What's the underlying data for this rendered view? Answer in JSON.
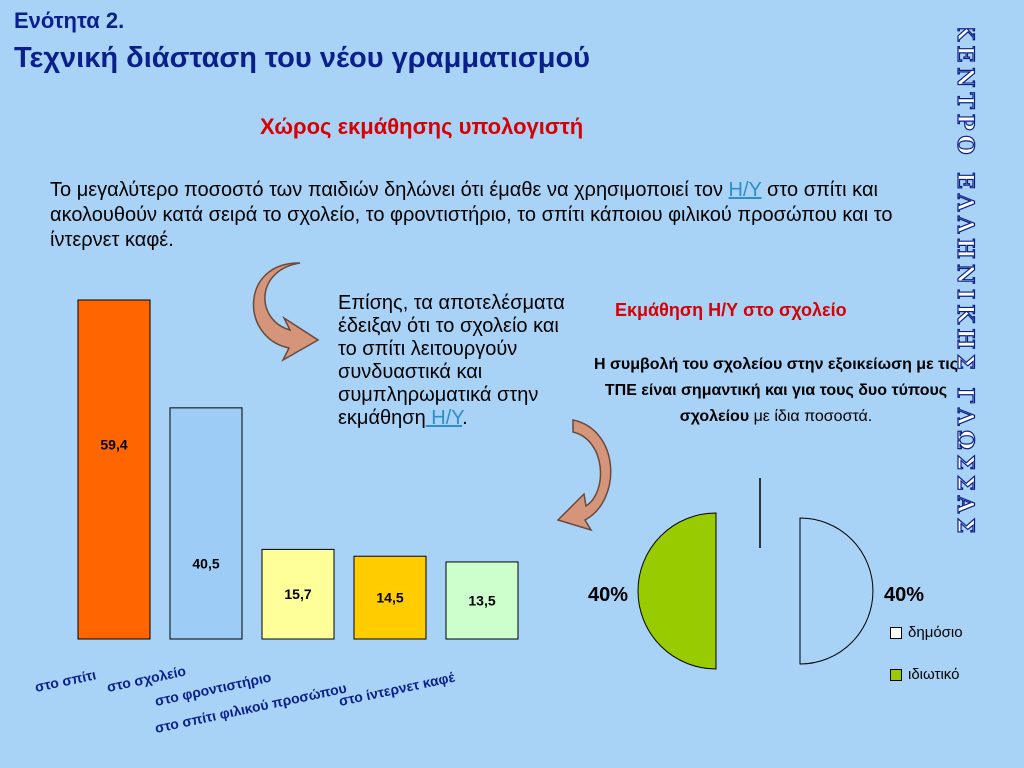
{
  "header": {
    "unit": "Ενότητα 2.",
    "title": "Τεχνική διάσταση του νέου γραμματισμού",
    "subtitle": "Χώρος εκμάθησης υπολογιστή"
  },
  "intro": {
    "part1": "Το μεγαλύτερο ποσοστό των παιδιών δηλώνει ότι έμαθε να χρησιμοποιεί τον ",
    "link": "Η/Υ",
    "part2": " στο σπίτι και ακολουθούν κατά σειρά το σχολείο, το φροντιστήριο, το σπίτι κάποιου φιλικού προσώπου και το ίντερνετ καφέ."
  },
  "side_note": {
    "text": "Επίσης, τα αποτελέσματα έδειξαν ότι το σχολείο και το σπίτι λειτουργούν συνδυαστικά και συμπληρωματικά στην εκμάθηση",
    "link": " Η/Υ",
    "end": "."
  },
  "pie_section": {
    "title": "Εκμάθηση Η/Υ στο σχολείο",
    "note_bold": "Η συμβολή του σχολείου στην εξοικείωση με τις ΤΠΕ είναι σημαντική και για τους δυο τύπους σχολείου",
    "note_normal": " με ίδια ποσοστά."
  },
  "stamp": {
    "text": "ΚΕΝΤΡΟ ΕΛΛΗΝΙΚΗΣ ΓΛΩΣΣΑΣ"
  },
  "chart_data": [
    {
      "type": "bar",
      "categories": [
        "στο σπίτι",
        "στο σχολείο",
        "στο φροντιστήριο",
        "στο σπίτι φιλικού προσώπου",
        "στο ίντερνετ καφέ"
      ],
      "values": [
        59.4,
        40.5,
        15.7,
        14.5,
        13.5
      ],
      "value_labels": [
        "59,4",
        "40,5",
        "15,7",
        "14,5",
        "13,5"
      ],
      "colors": [
        "#ff6600",
        "#9dccf7",
        "#ffff99",
        "#ffcc00",
        "#ccffcc"
      ],
      "ylim": [
        0,
        59.4
      ]
    },
    {
      "type": "pie",
      "series": [
        {
          "name": "δημόσιο",
          "value": 40,
          "label": "40%",
          "color": "#a9d2f7"
        },
        {
          "name": "ιδιωτικό",
          "value": 40,
          "label": "40%",
          "color": "#99cc00"
        }
      ]
    }
  ]
}
